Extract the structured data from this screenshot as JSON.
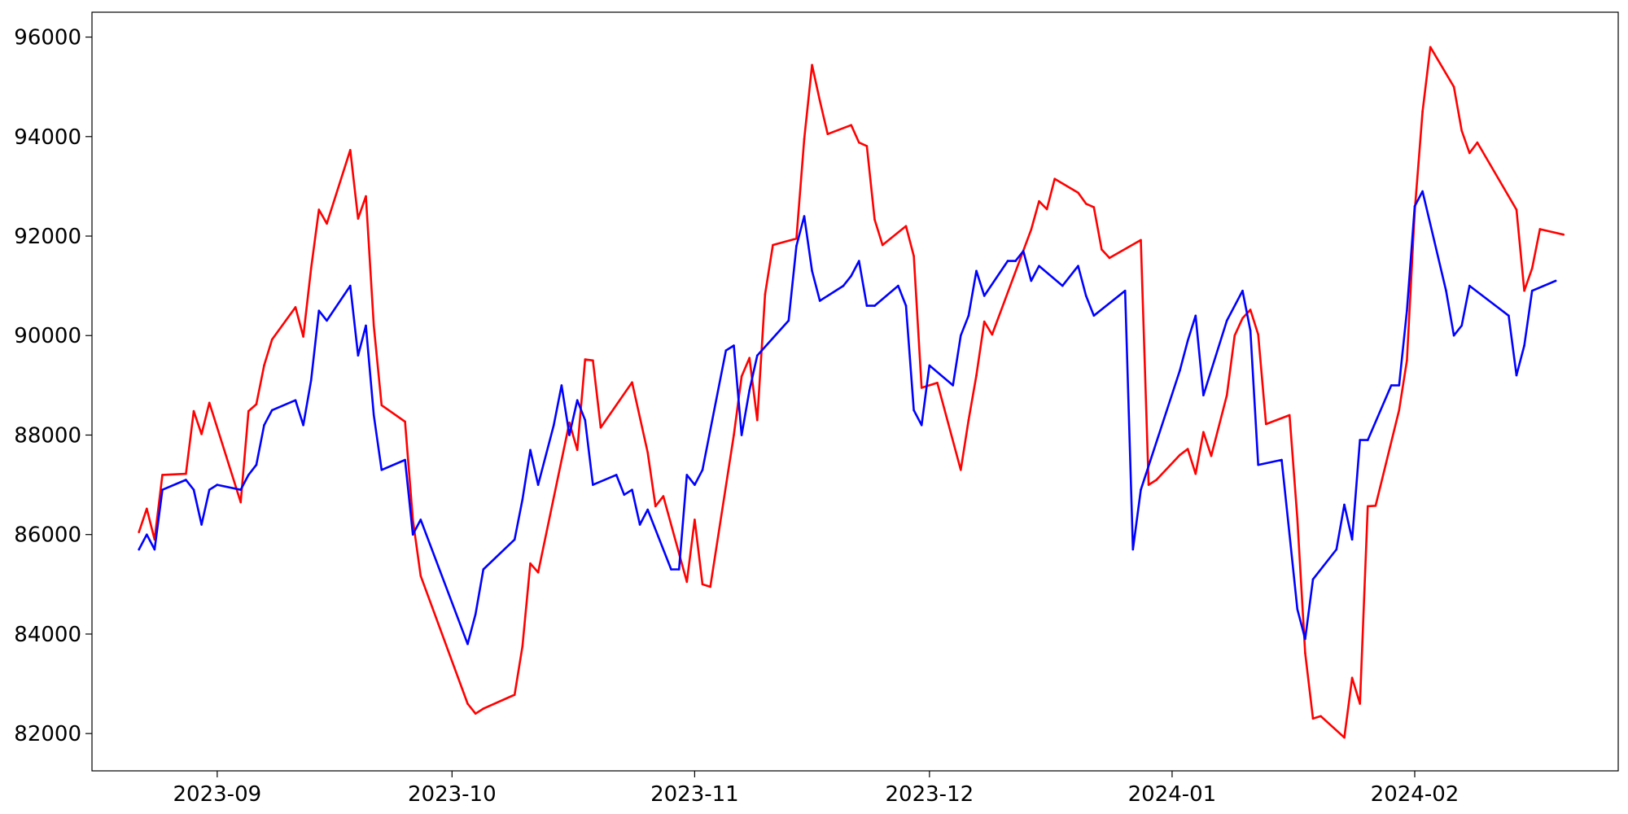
{
  "chart_data": {
    "type": "line",
    "title": "",
    "xlabel": "",
    "ylabel": "",
    "grid": false,
    "legend": false,
    "xlim": [
      "2023-08-16",
      "2024-02-27"
    ],
    "ylim": [
      81250,
      96500
    ],
    "x_ticks": [
      {
        "date": "2023-09-01",
        "label": "2023-09"
      },
      {
        "date": "2023-10-01",
        "label": "2023-10"
      },
      {
        "date": "2023-11-01",
        "label": "2023-11"
      },
      {
        "date": "2023-12-01",
        "label": "2023-12"
      },
      {
        "date": "2024-01-01",
        "label": "2024-01"
      },
      {
        "date": "2024-02-01",
        "label": "2024-02"
      }
    ],
    "y_ticks": [
      {
        "value": 82000,
        "label": "82000"
      },
      {
        "value": 84000,
        "label": "84000"
      },
      {
        "value": 86000,
        "label": "86000"
      },
      {
        "value": 88000,
        "label": "88000"
      },
      {
        "value": 90000,
        "label": "90000"
      },
      {
        "value": 92000,
        "label": "92000"
      },
      {
        "value": 94000,
        "label": "94000"
      },
      {
        "value": 96000,
        "label": "96000"
      }
    ],
    "series": [
      {
        "color": "#ff0000",
        "points": [
          [
            "2023-08-22",
            86050
          ],
          [
            "2023-08-23",
            86520
          ],
          [
            "2023-08-24",
            85900
          ],
          [
            "2023-08-25",
            87200
          ],
          [
            "2023-08-28",
            87220
          ],
          [
            "2023-08-29",
            88480
          ],
          [
            "2023-08-30",
            88020
          ],
          [
            "2023-08-31",
            88650
          ],
          [
            "2023-09-04",
            86650
          ],
          [
            "2023-09-05",
            88480
          ],
          [
            "2023-09-06",
            88620
          ],
          [
            "2023-09-07",
            89400
          ],
          [
            "2023-09-08",
            89920
          ],
          [
            "2023-09-11",
            90570
          ],
          [
            "2023-09-12",
            89980
          ],
          [
            "2023-09-13",
            91350
          ],
          [
            "2023-09-14",
            92530
          ],
          [
            "2023-09-15",
            92250
          ],
          [
            "2023-09-18",
            93730
          ],
          [
            "2023-09-19",
            92350
          ],
          [
            "2023-09-20",
            92800
          ],
          [
            "2023-09-21",
            90200
          ],
          [
            "2023-09-22",
            88600
          ],
          [
            "2023-09-25",
            88270
          ],
          [
            "2023-09-26",
            86300
          ],
          [
            "2023-09-27",
            85170
          ],
          [
            "2023-10-03",
            82600
          ],
          [
            "2023-10-04",
            82400
          ],
          [
            "2023-10-05",
            82500
          ],
          [
            "2023-10-09",
            82780
          ],
          [
            "2023-10-10",
            83750
          ],
          [
            "2023-10-11",
            85420
          ],
          [
            "2023-10-12",
            85240
          ],
          [
            "2023-10-16",
            88250
          ],
          [
            "2023-10-17",
            87700
          ],
          [
            "2023-10-18",
            89520
          ],
          [
            "2023-10-19",
            89500
          ],
          [
            "2023-10-20",
            88150
          ],
          [
            "2023-10-24",
            89060
          ],
          [
            "2023-10-26",
            87650
          ],
          [
            "2023-10-27",
            86570
          ],
          [
            "2023-10-28",
            86770
          ],
          [
            "2023-10-31",
            85050
          ],
          [
            "2023-11-01",
            86300
          ],
          [
            "2023-11-02",
            85000
          ],
          [
            "2023-11-03",
            84950
          ],
          [
            "2023-11-06",
            88000
          ],
          [
            "2023-11-07",
            89180
          ],
          [
            "2023-11-08",
            89550
          ],
          [
            "2023-11-09",
            88300
          ],
          [
            "2023-11-10",
            90830
          ],
          [
            "2023-11-11",
            91820
          ],
          [
            "2023-11-14",
            91950
          ],
          [
            "2023-11-15",
            93950
          ],
          [
            "2023-11-16",
            95440
          ],
          [
            "2023-11-17",
            94720
          ],
          [
            "2023-11-18",
            94050
          ],
          [
            "2023-11-21",
            94230
          ],
          [
            "2023-11-22",
            93880
          ],
          [
            "2023-11-23",
            93810
          ],
          [
            "2023-11-24",
            92330
          ],
          [
            "2023-11-25",
            91820
          ],
          [
            "2023-11-28",
            92200
          ],
          [
            "2023-11-29",
            91600
          ],
          [
            "2023-11-30",
            88950
          ],
          [
            "2023-12-02",
            89050
          ],
          [
            "2023-12-05",
            87300
          ],
          [
            "2023-12-06",
            88300
          ],
          [
            "2023-12-07",
            89200
          ],
          [
            "2023-12-08",
            90280
          ],
          [
            "2023-12-09",
            90020
          ],
          [
            "2023-12-14",
            92130
          ],
          [
            "2023-12-15",
            92700
          ],
          [
            "2023-12-16",
            92540
          ],
          [
            "2023-12-17",
            93150
          ],
          [
            "2023-12-20",
            92870
          ],
          [
            "2023-12-21",
            92650
          ],
          [
            "2023-12-22",
            92580
          ],
          [
            "2023-12-23",
            91730
          ],
          [
            "2023-12-24",
            91560
          ],
          [
            "2023-12-28",
            91920
          ],
          [
            "2023-12-29",
            87000
          ],
          [
            "2023-12-30",
            87100
          ],
          [
            "2024-01-02",
            87600
          ],
          [
            "2024-01-03",
            87720
          ],
          [
            "2024-01-04",
            87220
          ],
          [
            "2024-01-05",
            88060
          ],
          [
            "2024-01-06",
            87580
          ],
          [
            "2024-01-08",
            88800
          ],
          [
            "2024-01-09",
            90000
          ],
          [
            "2024-01-10",
            90350
          ],
          [
            "2024-01-11",
            90520
          ],
          [
            "2024-01-12",
            90020
          ],
          [
            "2024-01-13",
            88220
          ],
          [
            "2024-01-16",
            88400
          ],
          [
            "2024-01-17",
            86320
          ],
          [
            "2024-01-18",
            83620
          ],
          [
            "2024-01-19",
            82300
          ],
          [
            "2024-01-20",
            82350
          ],
          [
            "2024-01-23",
            81920
          ],
          [
            "2024-01-24",
            83120
          ],
          [
            "2024-01-25",
            82600
          ],
          [
            "2024-01-26",
            86570
          ],
          [
            "2024-01-27",
            86580
          ],
          [
            "2024-01-30",
            88500
          ],
          [
            "2024-01-31",
            89500
          ],
          [
            "2024-02-01",
            92500
          ],
          [
            "2024-02-02",
            94500
          ],
          [
            "2024-02-03",
            95800
          ],
          [
            "2024-02-06",
            95000
          ],
          [
            "2024-02-07",
            94120
          ],
          [
            "2024-02-08",
            93670
          ],
          [
            "2024-02-09",
            93880
          ],
          [
            "2024-02-14",
            92530
          ],
          [
            "2024-02-15",
            90900
          ],
          [
            "2024-02-16",
            91350
          ],
          [
            "2024-02-17",
            92140
          ],
          [
            "2024-02-20",
            92030
          ]
        ]
      },
      {
        "color": "#0000ff",
        "points": [
          [
            "2023-08-22",
            85700
          ],
          [
            "2023-08-23",
            86000
          ],
          [
            "2023-08-24",
            85700
          ],
          [
            "2023-08-25",
            86900
          ],
          [
            "2023-08-28",
            87100
          ],
          [
            "2023-08-29",
            86900
          ],
          [
            "2023-08-30",
            86200
          ],
          [
            "2023-08-31",
            86900
          ],
          [
            "2023-09-01",
            87000
          ],
          [
            "2023-09-04",
            86900
          ],
          [
            "2023-09-05",
            87200
          ],
          [
            "2023-09-06",
            87400
          ],
          [
            "2023-09-07",
            88200
          ],
          [
            "2023-09-08",
            88500
          ],
          [
            "2023-09-11",
            88700
          ],
          [
            "2023-09-12",
            88200
          ],
          [
            "2023-09-13",
            89100
          ],
          [
            "2023-09-14",
            90500
          ],
          [
            "2023-09-15",
            90300
          ],
          [
            "2023-09-18",
            91000
          ],
          [
            "2023-09-19",
            89600
          ],
          [
            "2023-09-20",
            90200
          ],
          [
            "2023-09-21",
            88400
          ],
          [
            "2023-09-22",
            87300
          ],
          [
            "2023-09-25",
            87500
          ],
          [
            "2023-09-26",
            86000
          ],
          [
            "2023-09-27",
            86300
          ],
          [
            "2023-10-03",
            83800
          ],
          [
            "2023-10-04",
            84400
          ],
          [
            "2023-10-05",
            85300
          ],
          [
            "2023-10-09",
            85900
          ],
          [
            "2023-10-10",
            86700
          ],
          [
            "2023-10-11",
            87700
          ],
          [
            "2023-10-12",
            87000
          ],
          [
            "2023-10-14",
            88200
          ],
          [
            "2023-10-15",
            89000
          ],
          [
            "2023-10-16",
            88000
          ],
          [
            "2023-10-17",
            88700
          ],
          [
            "2023-10-18",
            88300
          ],
          [
            "2023-10-19",
            87000
          ],
          [
            "2023-10-22",
            87200
          ],
          [
            "2023-10-23",
            86800
          ],
          [
            "2023-10-24",
            86900
          ],
          [
            "2023-10-25",
            86200
          ],
          [
            "2023-10-26",
            86500
          ],
          [
            "2023-10-29",
            85300
          ],
          [
            "2023-10-30",
            85300
          ],
          [
            "2023-10-31",
            87200
          ],
          [
            "2023-11-01",
            87000
          ],
          [
            "2023-11-02",
            87300
          ],
          [
            "2023-11-05",
            89700
          ],
          [
            "2023-11-06",
            89800
          ],
          [
            "2023-11-07",
            88000
          ],
          [
            "2023-11-08",
            88900
          ],
          [
            "2023-11-09",
            89600
          ],
          [
            "2023-11-13",
            90300
          ],
          [
            "2023-11-14",
            91800
          ],
          [
            "2023-11-15",
            92400
          ],
          [
            "2023-11-16",
            91300
          ],
          [
            "2023-11-17",
            90700
          ],
          [
            "2023-11-20",
            91000
          ],
          [
            "2023-11-21",
            91200
          ],
          [
            "2023-11-22",
            91500
          ],
          [
            "2023-11-23",
            90600
          ],
          [
            "2023-11-24",
            90600
          ],
          [
            "2023-11-27",
            91000
          ],
          [
            "2023-11-28",
            90600
          ],
          [
            "2023-11-29",
            88500
          ],
          [
            "2023-11-30",
            88200
          ],
          [
            "2023-12-01",
            89400
          ],
          [
            "2023-12-04",
            89000
          ],
          [
            "2023-12-05",
            90000
          ],
          [
            "2023-12-06",
            90400
          ],
          [
            "2023-12-07",
            91300
          ],
          [
            "2023-12-08",
            90800
          ],
          [
            "2023-12-11",
            91500
          ],
          [
            "2023-12-12",
            91500
          ],
          [
            "2023-12-13",
            91700
          ],
          [
            "2023-12-14",
            91100
          ],
          [
            "2023-12-15",
            91400
          ],
          [
            "2023-12-18",
            91000
          ],
          [
            "2023-12-20",
            91400
          ],
          [
            "2023-12-21",
            90800
          ],
          [
            "2023-12-22",
            90400
          ],
          [
            "2023-12-26",
            90900
          ],
          [
            "2023-12-27",
            85700
          ],
          [
            "2023-12-28",
            86900
          ],
          [
            "2024-01-02",
            89300
          ],
          [
            "2024-01-03",
            89900
          ],
          [
            "2024-01-04",
            90400
          ],
          [
            "2024-01-05",
            88800
          ],
          [
            "2024-01-08",
            90300
          ],
          [
            "2024-01-10",
            90900
          ],
          [
            "2024-01-11",
            90100
          ],
          [
            "2024-01-12",
            87400
          ],
          [
            "2024-01-15",
            87500
          ],
          [
            "2024-01-16",
            86000
          ],
          [
            "2024-01-17",
            84500
          ],
          [
            "2024-01-18",
            83900
          ],
          [
            "2024-01-19",
            85100
          ],
          [
            "2024-01-22",
            85700
          ],
          [
            "2024-01-23",
            86600
          ],
          [
            "2024-01-24",
            85900
          ],
          [
            "2024-01-25",
            87900
          ],
          [
            "2024-01-26",
            87900
          ],
          [
            "2024-01-29",
            89000
          ],
          [
            "2024-01-30",
            89000
          ],
          [
            "2024-01-31",
            90500
          ],
          [
            "2024-02-01",
            92600
          ],
          [
            "2024-02-02",
            92900
          ],
          [
            "2024-02-05",
            90900
          ],
          [
            "2024-02-06",
            90000
          ],
          [
            "2024-02-07",
            90200
          ],
          [
            "2024-02-08",
            91000
          ],
          [
            "2024-02-13",
            90400
          ],
          [
            "2024-02-14",
            89200
          ],
          [
            "2024-02-15",
            89800
          ],
          [
            "2024-02-16",
            90900
          ],
          [
            "2024-02-19",
            91100
          ]
        ]
      }
    ]
  }
}
